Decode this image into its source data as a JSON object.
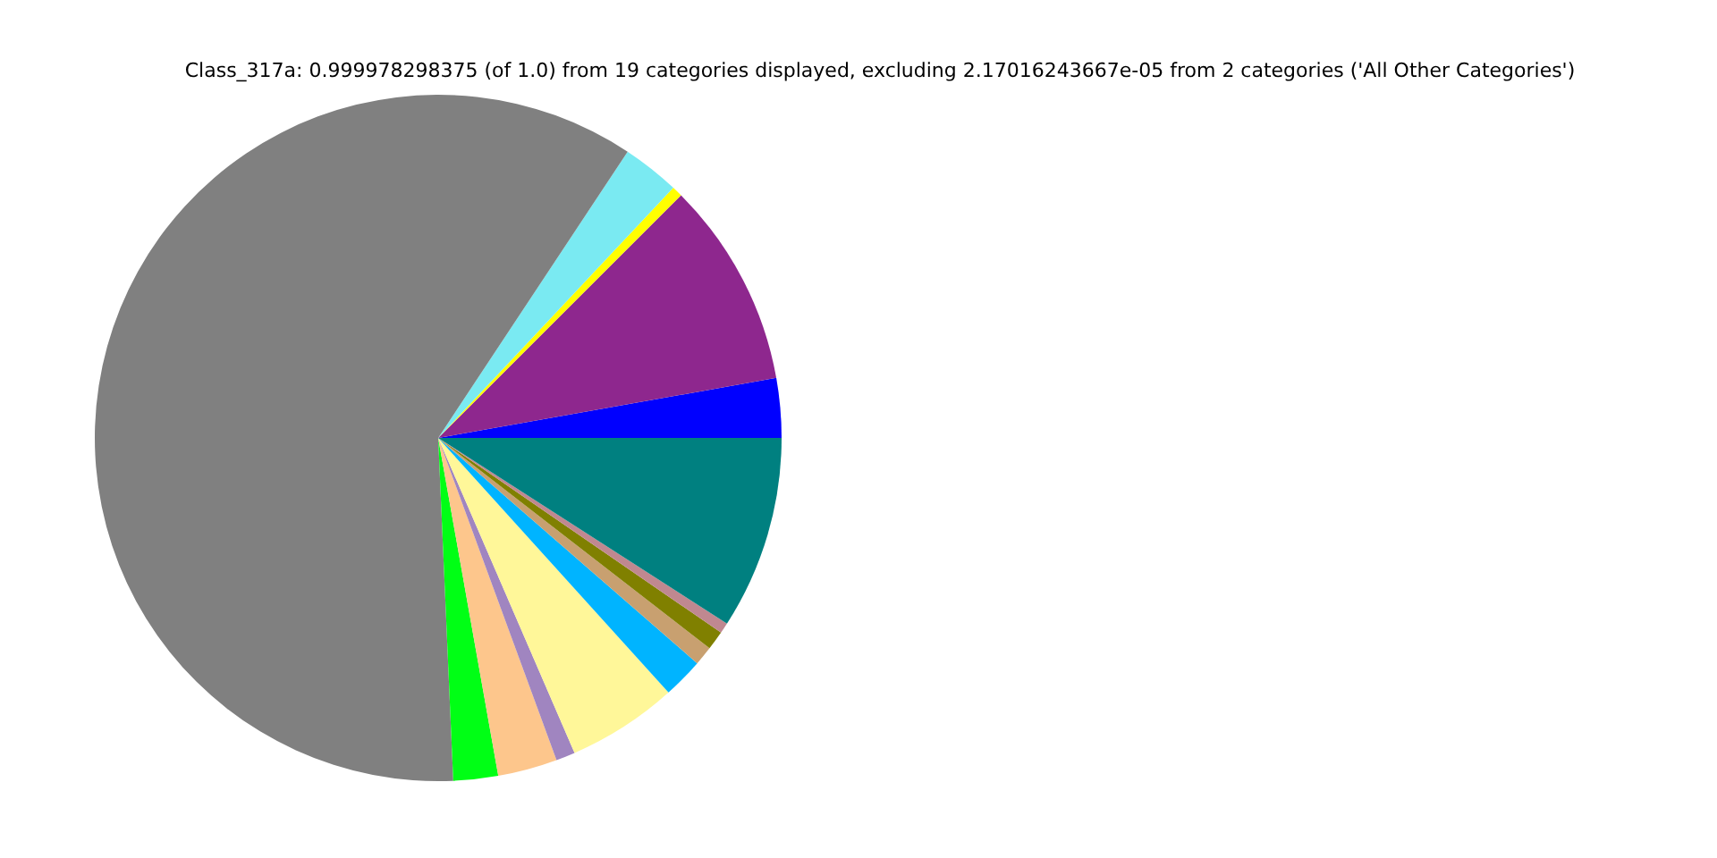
{
  "chart_data": {
    "type": "pie",
    "title": "Class_317a: 0.999978298375 (of 1.0) from 19 categories displayed, excluding 2.17016243667e-05 from 2 categories ('All Other Categories')",
    "categories": [
      null,
      null,
      null,
      null,
      null,
      null,
      null,
      null,
      null,
      null,
      null,
      null,
      null,
      null
    ],
    "values": [
      2.8,
      9.7,
      0.5,
      2.7,
      60.0,
      2.1,
      2.8,
      0.9,
      5.2,
      1.9,
      0.9,
      0.9,
      0.5,
      9.1
    ],
    "colors": [
      "#0000ff",
      "#8e278e",
      "#ffff00",
      "#7aeaf2",
      "#808080",
      "#00ff15",
      "#fdc68c",
      "#a085c0",
      "#fff799",
      "#00b4ff",
      "#c8a070",
      "#808000",
      "#c08890",
      "#008080"
    ]
  }
}
